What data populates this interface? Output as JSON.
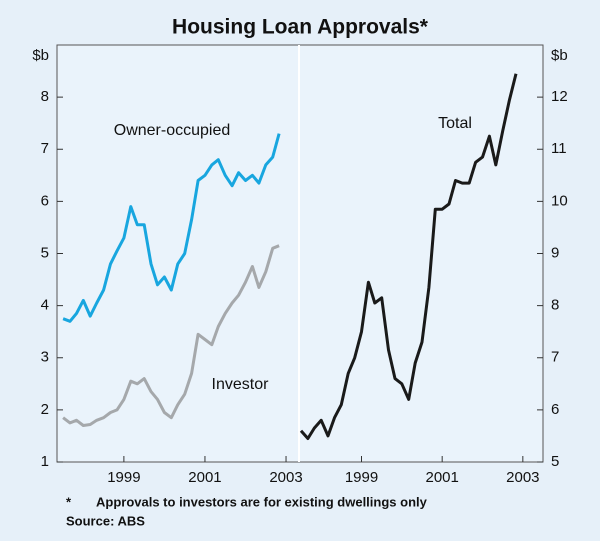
{
  "title": "Housing Loan Approvals*",
  "footnote_marker": "*",
  "footnote": "Approvals to investors are for existing dwellings only",
  "source": "Source: ABS",
  "chart_data": [
    {
      "type": "line",
      "y_label": "$b",
      "y_axis_side": "left",
      "x": [
        1997.5,
        1997.67,
        1997.83,
        1998.0,
        1998.17,
        1998.33,
        1998.5,
        1998.67,
        1998.83,
        1999.0,
        1999.17,
        1999.33,
        1999.5,
        1999.67,
        1999.83,
        2000.0,
        2000.17,
        2000.33,
        2000.5,
        2000.67,
        2000.83,
        2001.0,
        2001.17,
        2001.33,
        2001.5,
        2001.67,
        2001.83,
        2002.0,
        2002.17,
        2002.33,
        2002.5,
        2002.67,
        2002.83
      ],
      "xlim": [
        1997.35,
        2003.32
      ],
      "xticks": [
        1999,
        2001,
        2003
      ],
      "ylim": [
        1,
        9
      ],
      "yticks": [
        1,
        2,
        3,
        4,
        5,
        6,
        7,
        8
      ],
      "series": [
        {
          "name": "Owner-occupied",
          "color": "#18a6df",
          "values": [
            3.75,
            3.7,
            3.85,
            4.1,
            3.8,
            4.05,
            4.3,
            4.8,
            5.05,
            5.3,
            5.9,
            5.55,
            5.55,
            4.8,
            4.4,
            4.55,
            4.3,
            4.8,
            5.0,
            5.65,
            6.4,
            6.5,
            6.7,
            6.8,
            6.5,
            6.3,
            6.55,
            6.4,
            6.5,
            6.35,
            6.7,
            6.85,
            7.3
          ]
        },
        {
          "name": "Investor",
          "color": "#a5a8ab",
          "values": [
            1.85,
            1.75,
            1.8,
            1.7,
            1.72,
            1.8,
            1.85,
            1.95,
            2.0,
            2.2,
            2.55,
            2.5,
            2.6,
            2.35,
            2.2,
            1.95,
            1.85,
            2.1,
            2.3,
            2.7,
            3.45,
            3.35,
            3.25,
            3.6,
            3.85,
            4.05,
            4.2,
            4.45,
            4.75,
            4.35,
            4.65,
            5.1,
            5.15
          ]
        }
      ]
    },
    {
      "type": "line",
      "y_label": "$b",
      "y_axis_side": "right",
      "x": [
        1997.5,
        1997.67,
        1997.83,
        1998.0,
        1998.17,
        1998.33,
        1998.5,
        1998.67,
        1998.83,
        1999.0,
        1999.17,
        1999.33,
        1999.5,
        1999.67,
        1999.83,
        2000.0,
        2000.17,
        2000.33,
        2000.5,
        2000.67,
        2000.83,
        2001.0,
        2001.17,
        2001.33,
        2001.5,
        2001.67,
        2001.83,
        2002.0,
        2002.17,
        2002.33,
        2002.5,
        2002.67,
        2002.83
      ],
      "xlim": [
        1997.45,
        2003.5
      ],
      "xticks": [
        1999,
        2001,
        2003
      ],
      "ylim": [
        5,
        13
      ],
      "yticks": [
        5,
        6,
        7,
        8,
        9,
        10,
        11,
        12
      ],
      "series": [
        {
          "name": "Total",
          "color": "#1a1a1a",
          "values": [
            5.6,
            5.45,
            5.65,
            5.8,
            5.5,
            5.85,
            6.1,
            6.7,
            7.0,
            7.5,
            8.45,
            8.05,
            8.15,
            7.15,
            6.6,
            6.5,
            6.2,
            6.9,
            7.3,
            8.35,
            9.85,
            9.85,
            9.95,
            10.4,
            10.35,
            10.35,
            10.75,
            10.85,
            11.25,
            10.7,
            11.35,
            11.95,
            12.45
          ]
        }
      ]
    }
  ]
}
